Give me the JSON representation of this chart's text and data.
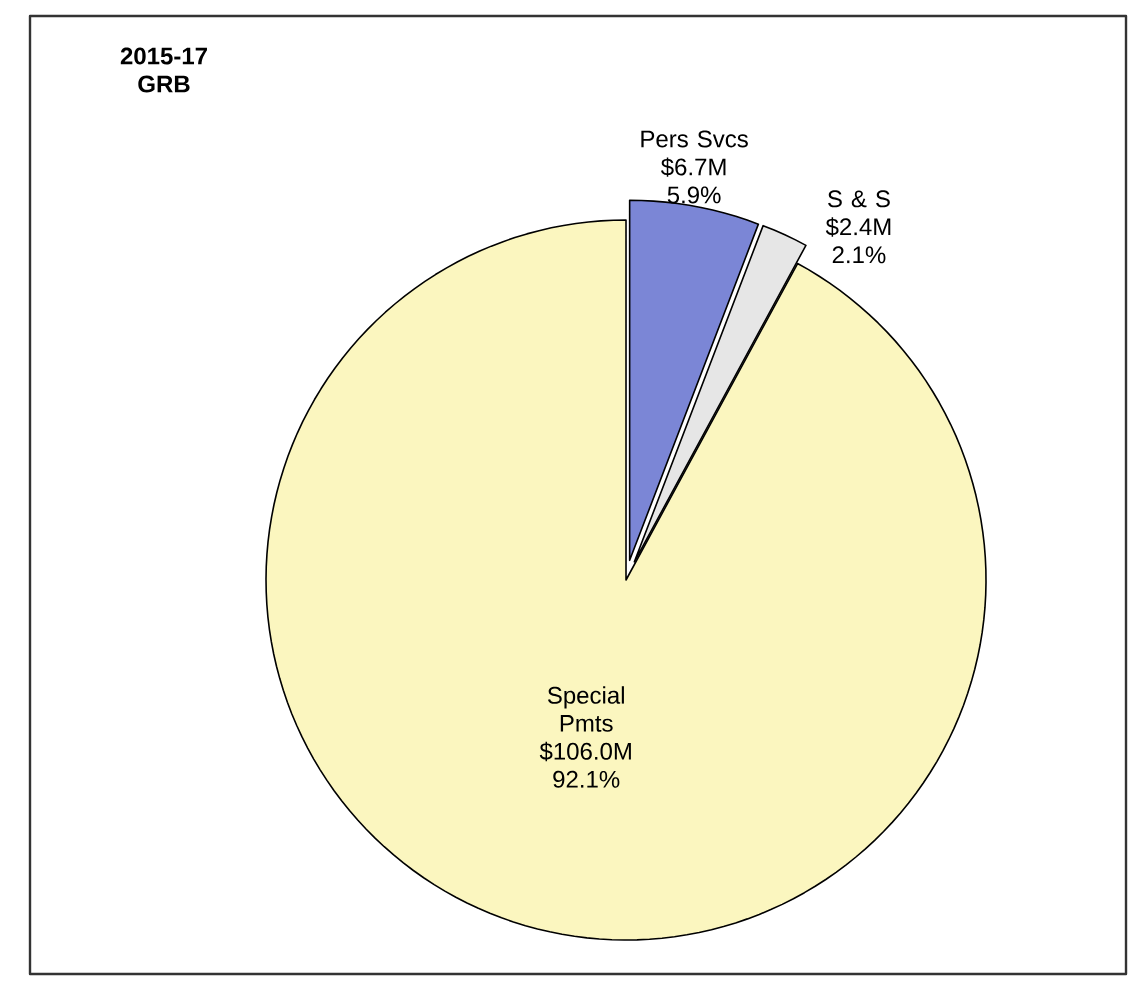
{
  "chart_data": {
    "type": "pie",
    "title": "2015-17 GRB",
    "categories": [
      "Pers Svcs",
      "S & S",
      "Special Pmts"
    ],
    "values": [
      6.7,
      2.4,
      106.0
    ],
    "value_labels": [
      "$6.7M",
      "$2.4M",
      "$106.0M"
    ],
    "annotations": [
      "5.9%",
      "2.1%",
      "92.1%"
    ],
    "colors": [
      "#7b86d6",
      "#e6e6e6",
      "#fbf6bf"
    ]
  }
}
